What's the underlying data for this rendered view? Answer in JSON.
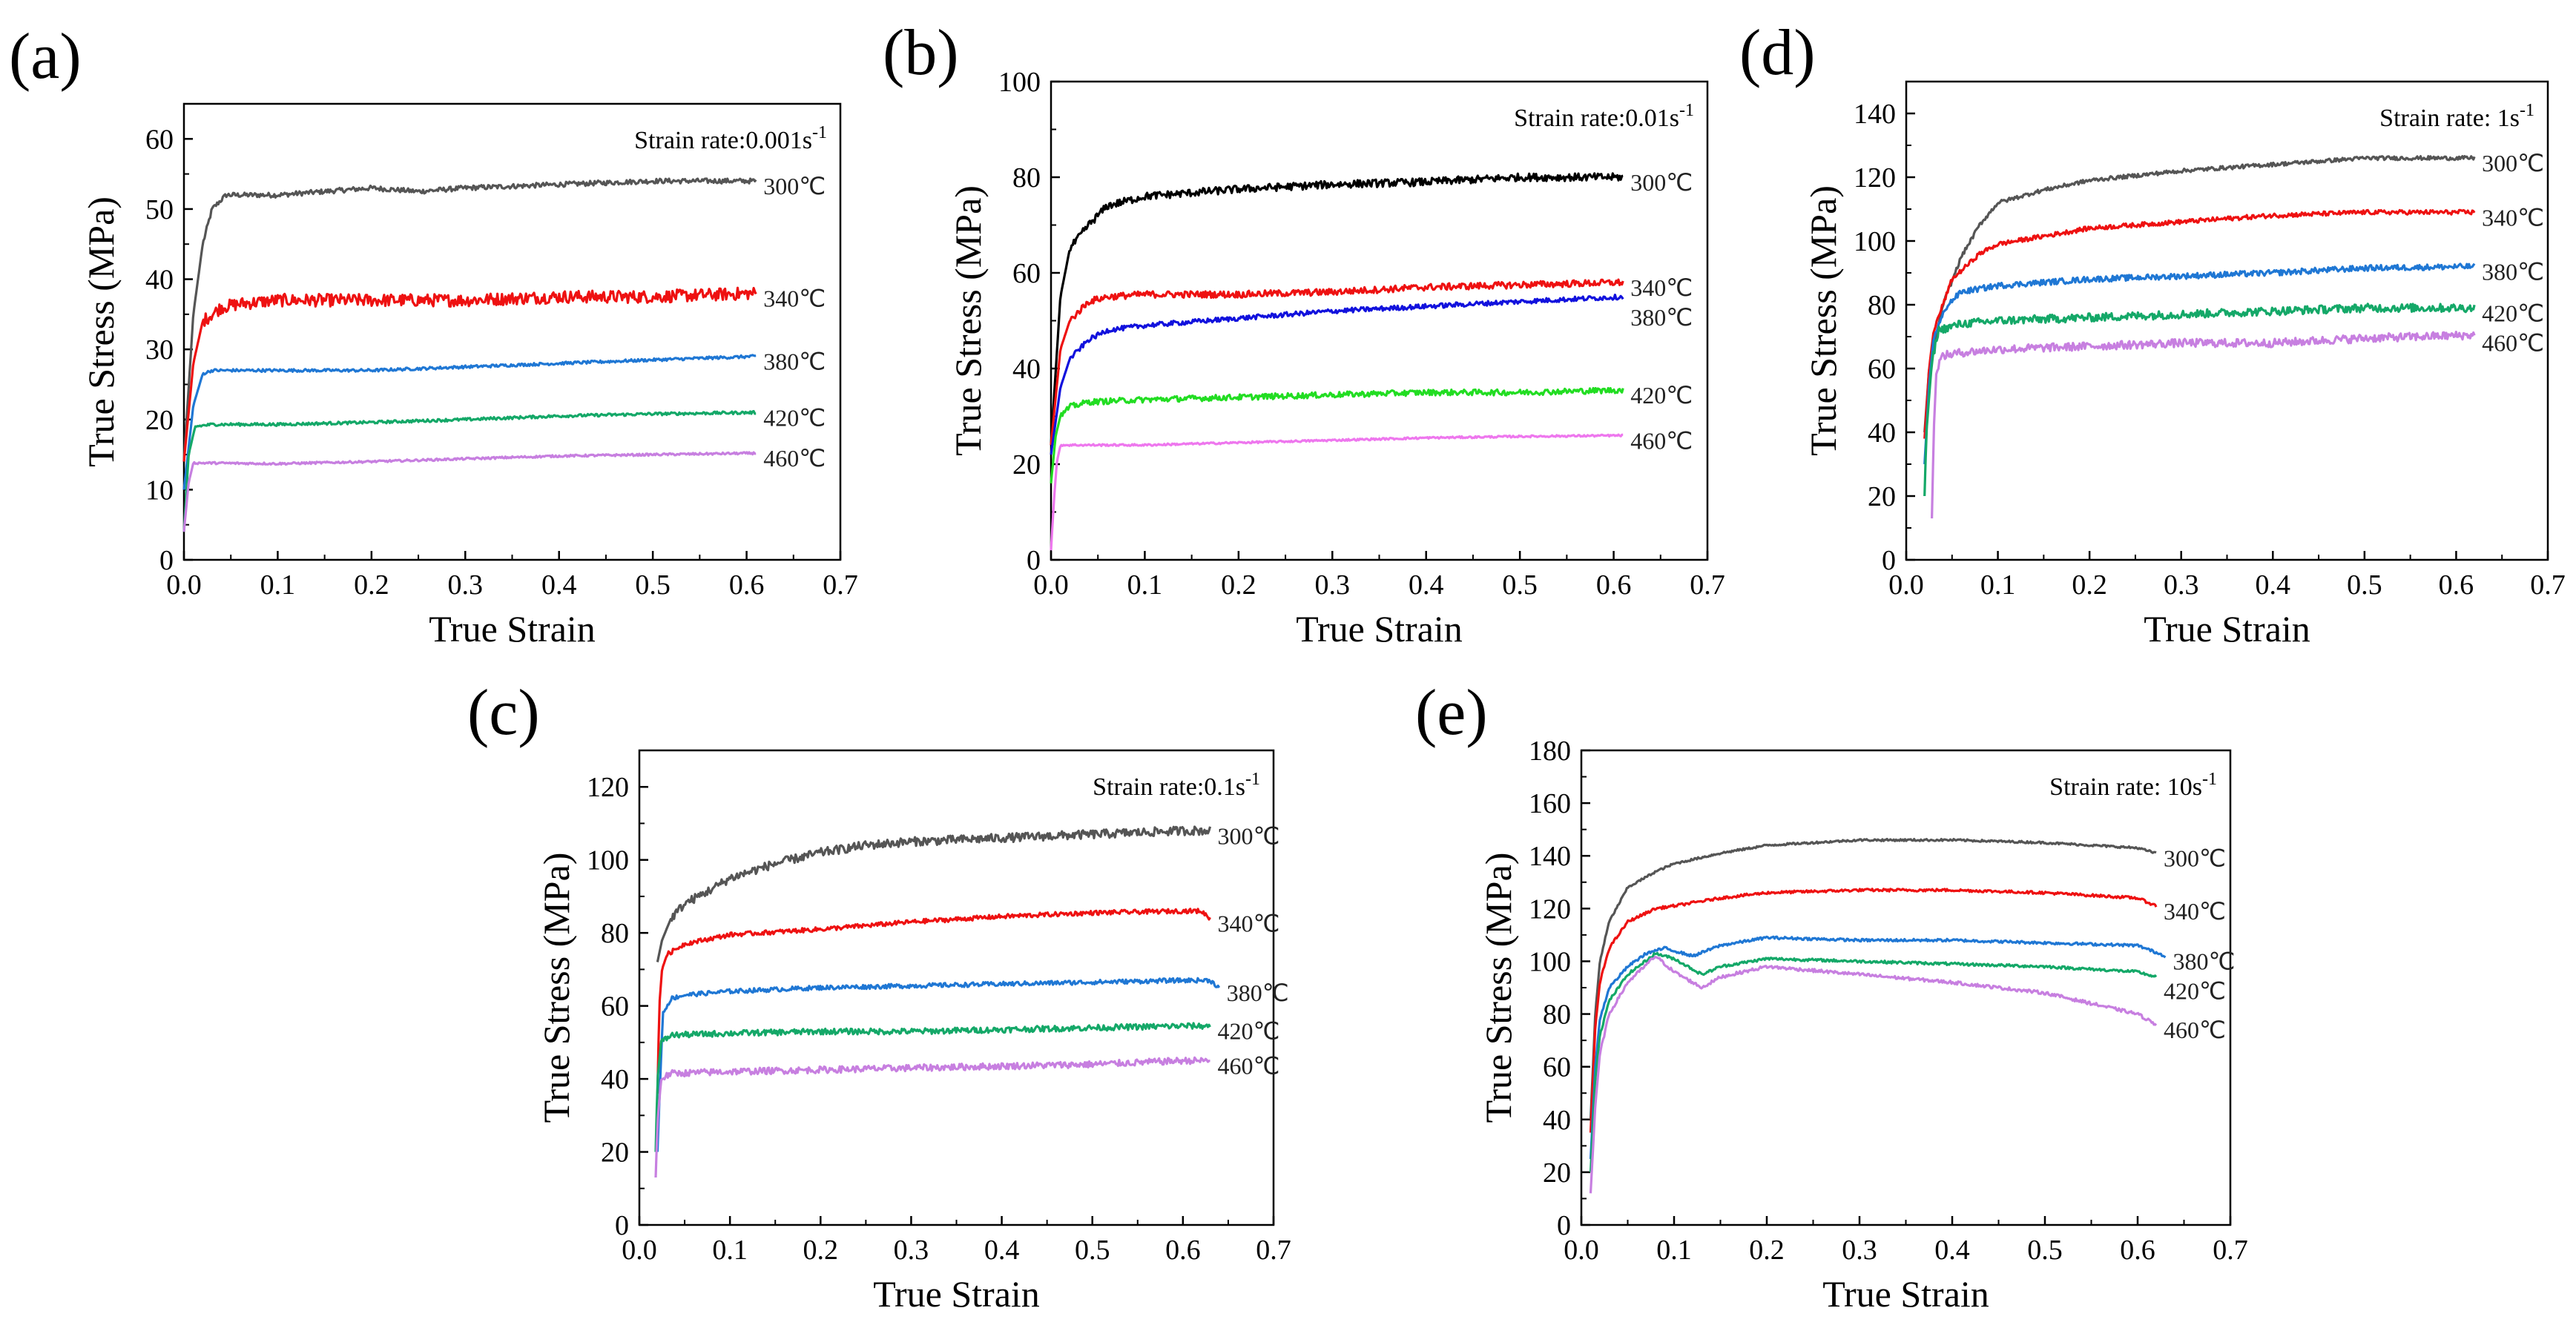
{
  "chart_data": [
    {
      "id": "a",
      "type": "line",
      "panel_label": "(a)",
      "annotation": {
        "text": "Strain rate:0.001s",
        "sup": "-1"
      },
      "xlabel": "True Strain",
      "ylabel": "True Stress (MPa)",
      "xlim": [
        0,
        0.7
      ],
      "ylim": [
        0,
        65
      ],
      "xticks": [
        0.0,
        0.1,
        0.2,
        0.3,
        0.4,
        0.5,
        0.6,
        0.7
      ],
      "xtick_labels": [
        "0.0",
        "0.1",
        "0.2",
        "0.3",
        "0.4",
        "0.5",
        "0.6",
        "0.7"
      ],
      "yticks": [
        0,
        10,
        20,
        30,
        40,
        50,
        60
      ],
      "ytick_labels": [
        "0",
        "10",
        "20",
        "30",
        "40",
        "50",
        "60"
      ],
      "series": [
        {
          "name": "300℃",
          "color": "#555555",
          "noise": 0.35,
          "x": [
            0.0,
            0.01,
            0.02,
            0.03,
            0.045,
            0.06,
            0.1,
            0.2,
            0.25,
            0.3,
            0.4,
            0.5,
            0.61
          ],
          "y": [
            14,
            35,
            45,
            50,
            52,
            52,
            52,
            53,
            52.5,
            53,
            53.5,
            54,
            54
          ]
        },
        {
          "name": "340℃",
          "color": "#ee1111",
          "noise": 0.9,
          "x": [
            0.0,
            0.01,
            0.02,
            0.04,
            0.06,
            0.1,
            0.2,
            0.3,
            0.4,
            0.5,
            0.61
          ],
          "y": [
            14,
            28,
            34,
            36,
            36.5,
            37,
            37,
            37,
            37.5,
            37.5,
            38
          ]
        },
        {
          "name": "380℃",
          "color": "#1f77d4",
          "noise": 0.2,
          "x": [
            0.0,
            0.01,
            0.02,
            0.03,
            0.1,
            0.2,
            0.3,
            0.4,
            0.5,
            0.61
          ],
          "y": [
            10,
            22,
            26.5,
            27,
            27,
            27,
            27.5,
            28,
            28.5,
            29
          ]
        },
        {
          "name": "420℃",
          "color": "#14a868",
          "noise": 0.2,
          "x": [
            0.0,
            0.005,
            0.012,
            0.03,
            0.1,
            0.2,
            0.3,
            0.4,
            0.5,
            0.61
          ],
          "y": [
            4,
            15,
            19,
            19.3,
            19.3,
            19.6,
            20,
            20.5,
            20.8,
            21
          ]
        },
        {
          "name": "460℃",
          "color": "#c77fe0",
          "noise": 0.15,
          "x": [
            0.0,
            0.005,
            0.01,
            0.03,
            0.1,
            0.2,
            0.3,
            0.4,
            0.5,
            0.61
          ],
          "y": [
            4,
            11,
            13.8,
            13.8,
            13.7,
            14,
            14.4,
            14.8,
            15,
            15.2
          ]
        }
      ]
    },
    {
      "id": "b",
      "type": "line",
      "panel_label": "(b)",
      "annotation": {
        "text": "Strain rate:0.01s",
        "sup": "-1"
      },
      "xlabel": "True Strain",
      "ylabel": "True Stress (MPa)",
      "xlim": [
        0,
        0.7
      ],
      "ylim": [
        0,
        100
      ],
      "xticks": [
        0.0,
        0.1,
        0.2,
        0.3,
        0.4,
        0.5,
        0.6,
        0.7
      ],
      "xtick_labels": [
        "0.0",
        "0.1",
        "0.2",
        "0.3",
        "0.4",
        "0.5",
        "0.6",
        "0.7"
      ],
      "yticks": [
        0,
        20,
        40,
        60,
        80,
        100
      ],
      "ytick_labels": [
        "0",
        "20",
        "40",
        "60",
        "80",
        "100"
      ],
      "series": [
        {
          "name": "300℃",
          "color": "#000000",
          "noise": 0.8,
          "x": [
            0.0,
            0.01,
            0.02,
            0.04,
            0.06,
            0.1,
            0.2,
            0.3,
            0.4,
            0.5,
            0.61
          ],
          "y": [
            24,
            55,
            65,
            70,
            74,
            76,
            77.5,
            78.5,
            79,
            80,
            80
          ]
        },
        {
          "name": "340℃",
          "color": "#ee1111",
          "noise": 0.7,
          "x": [
            0.0,
            0.01,
            0.02,
            0.04,
            0.06,
            0.1,
            0.2,
            0.3,
            0.4,
            0.5,
            0.61
          ],
          "y": [
            24,
            44,
            50,
            54,
            55,
            55.5,
            55.5,
            56,
            57,
            57.5,
            58
          ]
        },
        {
          "name": "380℃",
          "color": "#1111dd",
          "noise": 0.5,
          "x": [
            0.0,
            0.01,
            0.02,
            0.04,
            0.06,
            0.1,
            0.2,
            0.3,
            0.4,
            0.5,
            0.61
          ],
          "y": [
            22,
            36,
            42,
            46,
            48,
            49,
            50.5,
            52,
            53,
            54,
            55
          ]
        },
        {
          "name": "420℃",
          "color": "#22dd22",
          "noise": 0.6,
          "x": [
            0.0,
            0.005,
            0.01,
            0.02,
            0.04,
            0.1,
            0.2,
            0.3,
            0.4,
            0.5,
            0.61
          ],
          "y": [
            16,
            26,
            30,
            32,
            33,
            33.5,
            34,
            34.5,
            35,
            35,
            35.5
          ]
        },
        {
          "name": "460℃",
          "color": "#ee77ee",
          "noise": 0.2,
          "x": [
            0.0,
            0.003,
            0.006,
            0.01,
            0.1,
            0.2,
            0.3,
            0.4,
            0.5,
            0.61
          ],
          "y": [
            2,
            12,
            20,
            24,
            24,
            24.5,
            25,
            25.5,
            25.8,
            26
          ]
        }
      ]
    },
    {
      "id": "d",
      "type": "line",
      "panel_label": "(d)",
      "annotation": {
        "text": "Strain rate: 1s",
        "sup": "-1"
      },
      "xlabel": "True Strain",
      "ylabel": "True Stress (MPa)",
      "xlim": [
        0,
        0.7
      ],
      "ylim": [
        0,
        150
      ],
      "xticks": [
        0.0,
        0.1,
        0.2,
        0.3,
        0.4,
        0.5,
        0.6,
        0.7
      ],
      "xtick_labels": [
        "0.0",
        "0.1",
        "0.2",
        "0.3",
        "0.4",
        "0.5",
        "0.6",
        "0.7"
      ],
      "yticks": [
        0,
        20,
        40,
        60,
        80,
        100,
        120,
        140
      ],
      "ytick_labels": [
        "0",
        "20",
        "40",
        "60",
        "80",
        "100",
        "120",
        "140"
      ],
      "series": [
        {
          "name": "300℃",
          "color": "#555555",
          "noise": 0.6,
          "x": [
            0.02,
            0.025,
            0.04,
            0.06,
            0.08,
            0.1,
            0.15,
            0.2,
            0.3,
            0.4,
            0.5,
            0.62
          ],
          "y": [
            40,
            60,
            80,
            95,
            105,
            112,
            116,
            119,
            122,
            124,
            126,
            126
          ]
        },
        {
          "name": "340℃",
          "color": "#ee1111",
          "noise": 0.7,
          "x": [
            0.02,
            0.025,
            0.03,
            0.05,
            0.08,
            0.1,
            0.2,
            0.3,
            0.4,
            0.5,
            0.62
          ],
          "y": [
            38,
            60,
            72,
            88,
            96,
            99,
            104,
            106,
            108,
            109,
            109
          ]
        },
        {
          "name": "380℃",
          "color": "#1f77d4",
          "noise": 0.9,
          "x": [
            0.02,
            0.025,
            0.03,
            0.045,
            0.06,
            0.1,
            0.2,
            0.3,
            0.4,
            0.5,
            0.62
          ],
          "y": [
            30,
            55,
            70,
            80,
            84,
            86,
            88,
            89,
            90,
            91.5,
            92
          ]
        },
        {
          "name": "420℃",
          "color": "#14a868",
          "noise": 1.3,
          "x": [
            0.02,
            0.022,
            0.028,
            0.035,
            0.06,
            0.1,
            0.2,
            0.3,
            0.4,
            0.5,
            0.62
          ],
          "y": [
            20,
            40,
            62,
            72,
            74,
            75,
            76,
            77,
            78,
            79,
            79
          ]
        },
        {
          "name": "460℃",
          "color": "#c77fe0",
          "noise": 1.3,
          "x": [
            0.028,
            0.03,
            0.033,
            0.04,
            0.06,
            0.1,
            0.2,
            0.3,
            0.4,
            0.5,
            0.62
          ],
          "y": [
            13,
            40,
            60,
            64,
            65,
            66,
            67,
            68,
            68,
            69.5,
            70.5
          ]
        }
      ]
    },
    {
      "id": "c",
      "type": "line",
      "panel_label": "(c)",
      "annotation": {
        "text": "Strain rate:0.1s",
        "sup": "-1"
      },
      "xlabel": "True Strain",
      "ylabel": "True Stress (MPa)",
      "xlim": [
        0,
        0.7
      ],
      "ylim": [
        0,
        130
      ],
      "xticks": [
        0.0,
        0.1,
        0.2,
        0.3,
        0.4,
        0.5,
        0.6,
        0.7
      ],
      "xtick_labels": [
        "0.0",
        "0.1",
        "0.2",
        "0.3",
        "0.4",
        "0.5",
        "0.6",
        "0.7"
      ],
      "yticks": [
        0,
        20,
        40,
        60,
        80,
        100,
        120
      ],
      "ytick_labels": [
        "0",
        "20",
        "40",
        "60",
        "80",
        "100",
        "120"
      ],
      "series": [
        {
          "name": "300℃",
          "color": "#555555",
          "noise": 1.2,
          "x": [
            0.02,
            0.025,
            0.035,
            0.05,
            0.08,
            0.1,
            0.15,
            0.2,
            0.25,
            0.3,
            0.4,
            0.5,
            0.6,
            0.63
          ],
          "y": [
            72,
            78,
            84,
            88,
            92,
            95,
            99,
            102,
            104,
            105,
            106,
            107,
            108,
            108
          ]
        },
        {
          "name": "340℃",
          "color": "#ee1111",
          "noise": 0.6,
          "x": [
            0.02,
            0.022,
            0.025,
            0.03,
            0.05,
            0.1,
            0.2,
            0.3,
            0.4,
            0.5,
            0.6,
            0.62,
            0.63
          ],
          "y": [
            36,
            60,
            70,
            74,
            77,
            79.5,
            81,
            83,
            84.5,
            85.5,
            86,
            86,
            84
          ]
        },
        {
          "name": "380℃",
          "color": "#1f77d4",
          "noise": 0.6,
          "x": [
            0.02,
            0.023,
            0.026,
            0.035,
            0.05,
            0.1,
            0.2,
            0.3,
            0.4,
            0.5,
            0.6,
            0.63,
            0.64
          ],
          "y": [
            20,
            40,
            58,
            62,
            63,
            64,
            65,
            65.5,
            66,
            66.5,
            67,
            67,
            65
          ]
        },
        {
          "name": "420℃",
          "color": "#14a868",
          "noise": 0.8,
          "x": [
            0.018,
            0.02,
            0.024,
            0.035,
            0.1,
            0.2,
            0.3,
            0.4,
            0.5,
            0.6,
            0.63
          ],
          "y": [
            20,
            40,
            50,
            52,
            52.5,
            53,
            53,
            53.5,
            54,
            54.5,
            54.5
          ]
        },
        {
          "name": "460℃",
          "color": "#c77fe0",
          "noise": 0.9,
          "x": [
            0.018,
            0.02,
            0.024,
            0.035,
            0.1,
            0.2,
            0.3,
            0.4,
            0.5,
            0.6,
            0.63
          ],
          "y": [
            13,
            28,
            40,
            41.5,
            42,
            42.5,
            43,
            43.5,
            44,
            45,
            45
          ]
        }
      ]
    },
    {
      "id": "e",
      "type": "line",
      "panel_label": "(e)",
      "annotation": {
        "text": "Strain rate: 10s",
        "sup": "-1"
      },
      "xlabel": "True Strain",
      "ylabel": "True Stress (MPa)",
      "xlim": [
        0,
        0.7
      ],
      "ylim": [
        0,
        180
      ],
      "xticks": [
        0.0,
        0.1,
        0.2,
        0.3,
        0.4,
        0.5,
        0.6,
        0.7
      ],
      "xtick_labels": [
        "0.0",
        "0.1",
        "0.2",
        "0.3",
        "0.4",
        "0.5",
        "0.6",
        "0.7"
      ],
      "yticks": [
        0,
        20,
        40,
        60,
        80,
        100,
        120,
        140,
        160,
        180
      ],
      "ytick_labels": [
        "0",
        "20",
        "40",
        "60",
        "80",
        "100",
        "120",
        "140",
        "160",
        "180"
      ],
      "series": [
        {
          "name": "300℃",
          "color": "#555555",
          "noise": 0.4,
          "x": [
            0.01,
            0.015,
            0.02,
            0.03,
            0.05,
            0.08,
            0.1,
            0.15,
            0.2,
            0.3,
            0.4,
            0.5,
            0.6,
            0.62
          ],
          "y": [
            40,
            80,
            100,
            115,
            128,
            134,
            137,
            141,
            144,
            146,
            146,
            145,
            143,
            141
          ]
        },
        {
          "name": "340℃",
          "color": "#ee1111",
          "noise": 0.5,
          "x": [
            0.01,
            0.015,
            0.02,
            0.03,
            0.05,
            0.08,
            0.1,
            0.15,
            0.2,
            0.3,
            0.4,
            0.5,
            0.6,
            0.62
          ],
          "y": [
            35,
            75,
            92,
            105,
            115,
            120,
            121,
            124,
            126,
            127,
            127,
            126,
            124,
            121
          ]
        },
        {
          "name": "380℃",
          "color": "#1f77d4",
          "noise": 0.5,
          "x": [
            0.01,
            0.015,
            0.02,
            0.03,
            0.05,
            0.07,
            0.09,
            0.12,
            0.15,
            0.2,
            0.3,
            0.4,
            0.5,
            0.6,
            0.63
          ],
          "y": [
            25,
            60,
            78,
            90,
            98,
            103,
            105,
            102,
            106,
            109,
            108,
            108,
            107,
            106,
            102
          ]
        },
        {
          "name": "420℃",
          "color": "#14a868",
          "noise": 0.5,
          "x": [
            0.01,
            0.015,
            0.02,
            0.03,
            0.05,
            0.08,
            0.1,
            0.13,
            0.15,
            0.2,
            0.3,
            0.4,
            0.5,
            0.6,
            0.62
          ],
          "y": [
            20,
            55,
            72,
            85,
            95,
            103,
            101,
            95,
            98,
            101,
            100,
            99,
            98,
            96,
            94
          ]
        },
        {
          "name": "460℃",
          "color": "#c77fe0",
          "noise": 0.6,
          "x": [
            0.01,
            0.015,
            0.02,
            0.03,
            0.05,
            0.08,
            0.1,
            0.13,
            0.15,
            0.2,
            0.3,
            0.4,
            0.5,
            0.6,
            0.62
          ],
          "y": [
            12,
            45,
            65,
            80,
            92,
            102,
            96,
            90,
            94,
            98,
            95,
            92,
            88,
            80,
            76
          ]
        }
      ]
    }
  ]
}
